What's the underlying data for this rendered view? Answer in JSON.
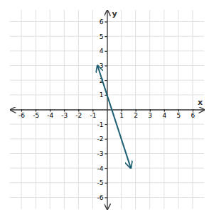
{
  "chart_data": {
    "type": "line",
    "xlabel": "x",
    "ylabel": "y",
    "x": [
      -0.667,
      1.667
    ],
    "values": [
      3.001,
      -4.001
    ],
    "color": "#1c5f72",
    "xlim": [
      -6.8,
      6.8
    ],
    "ylim": [
      -6.8,
      6.8
    ],
    "xticks": [
      -6,
      -5,
      -4,
      -3,
      -2,
      -1,
      1,
      2,
      3,
      4,
      5,
      6
    ],
    "yticks": [
      -6,
      -5,
      -4,
      -3,
      -2,
      -1,
      1,
      2,
      3,
      4,
      5,
      6
    ],
    "grid": true
  }
}
